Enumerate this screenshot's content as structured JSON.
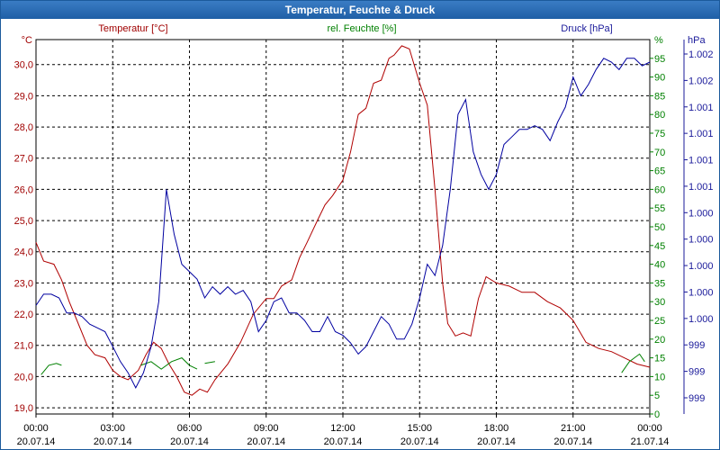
{
  "window": {
    "title": "Temperatur, Feuchte & Druck"
  },
  "chart_data": {
    "type": "line",
    "title": "Temperatur, Feuchte & Druck",
    "colors": {
      "temperature": "#b00000",
      "humidity": "#008000",
      "pressure": "#0000a0",
      "grid": "#000000"
    },
    "axes": {
      "temperature": {
        "title": "Temperatur [°C]",
        "unit": "°C",
        "ylim": [
          18.8,
          30.8
        ],
        "ticks": [
          "30,0",
          "29,0",
          "28,0",
          "27,0",
          "26,0",
          "25,0",
          "24,0",
          "23,0",
          "22,0",
          "21,0",
          "20,0",
          "19,0"
        ]
      },
      "humidity": {
        "title": "rel. Feuchte [%]",
        "unit": "%",
        "ylim": [
          0,
          100
        ],
        "ticks": [
          "95",
          "90",
          "85",
          "80",
          "75",
          "70",
          "65",
          "60",
          "55",
          "50",
          "45",
          "40",
          "35",
          "30",
          "25",
          "20",
          "15",
          "10",
          "5",
          "0"
        ]
      },
      "pressure": {
        "title": "Druck [hPa]",
        "unit": "hPa",
        "ticks": [
          "1.002",
          "1.002",
          "1.001",
          "1.001",
          "1.001",
          "1.001",
          "1.000",
          "1.000",
          "1.000",
          "1.000",
          "1.000",
          "999",
          "999",
          "999"
        ]
      },
      "x": {
        "range_hours": [
          0,
          24
        ],
        "ticks": [
          {
            "time": "00:00",
            "date": "20.07.14"
          },
          {
            "time": "03:00",
            "date": "20.07.14"
          },
          {
            "time": "06:00",
            "date": "20.07.14"
          },
          {
            "time": "09:00",
            "date": "20.07.14"
          },
          {
            "time": "12:00",
            "date": "20.07.14"
          },
          {
            "time": "15:00",
            "date": "20.07.14"
          },
          {
            "time": "18:00",
            "date": "20.07.14"
          },
          {
            "time": "21:00",
            "date": "20.07.14"
          },
          {
            "time": "00:00",
            "date": "21.07.14"
          }
        ]
      }
    },
    "series": [
      {
        "name": "Temperatur",
        "axis": "temperature",
        "x_hours": [
          0,
          0.3,
          0.7,
          1,
          1.3,
          1.6,
          2,
          2.3,
          2.7,
          3,
          3.3,
          3.6,
          4,
          4.3,
          4.6,
          4.9,
          5.2,
          5.5,
          5.8,
          6.1,
          6.4,
          6.7,
          7,
          7.5,
          8,
          8.5,
          9,
          9.3,
          9.6,
          10,
          10.3,
          10.6,
          11,
          11.3,
          11.6,
          12,
          12.3,
          12.6,
          12.9,
          13.2,
          13.5,
          13.8,
          14,
          14.3,
          14.6,
          15,
          15.3,
          15.6,
          15.9,
          16.1,
          16.4,
          16.7,
          17,
          17.3,
          17.6,
          18,
          18.5,
          19,
          19.5,
          20,
          20.5,
          21,
          21.5,
          22,
          22.5,
          23,
          23.5,
          24
        ],
        "y": [
          24.3,
          23.7,
          23.6,
          23.1,
          22.4,
          21.8,
          21.0,
          20.7,
          20.6,
          20.2,
          20.0,
          19.9,
          20.2,
          20.7,
          21.1,
          20.9,
          20.4,
          20.0,
          19.5,
          19.4,
          19.6,
          19.5,
          19.9,
          20.4,
          21.1,
          22.0,
          22.5,
          22.5,
          22.9,
          23.1,
          23.8,
          24.3,
          25.0,
          25.5,
          25.8,
          26.3,
          27.2,
          28.4,
          28.6,
          29.4,
          29.5,
          30.2,
          30.3,
          30.6,
          30.5,
          29.4,
          28.7,
          26.0,
          23.0,
          21.7,
          21.3,
          21.4,
          21.3,
          22.5,
          23.2,
          23.0,
          22.9,
          22.7,
          22.7,
          22.4,
          22.2,
          21.8,
          21.1,
          20.9,
          20.8,
          20.6,
          20.4,
          20.3
        ]
      },
      {
        "name": "rel. Feuchte",
        "axis": "humidity",
        "x_hours": [
          0.2,
          0.5,
          0.8,
          1.0
        ],
        "y": [
          10.5,
          13,
          13.5,
          13
        ]
      },
      {
        "name": "rel. Feuchte",
        "axis": "humidity",
        "x_hours": [
          4.1,
          4.5,
          4.9,
          5.3,
          5.7,
          6.0,
          6.3
        ],
        "y": [
          13,
          14,
          12,
          14,
          15,
          13,
          12
        ]
      },
      {
        "name": "rel. Feuchte",
        "axis": "humidity",
        "x_hours": [
          6.6,
          7.0
        ],
        "y": [
          13.5,
          14
        ]
      },
      {
        "name": "rel. Feuchte",
        "axis": "humidity",
        "x_hours": [
          22.9,
          23.2,
          23.4,
          23.6,
          23.8
        ],
        "y": [
          11,
          14,
          15,
          16,
          14
        ]
      },
      {
        "name": "Druck",
        "axis": "humidity",
        "x_hours": [
          0,
          0.3,
          0.6,
          0.9,
          1.2,
          1.5,
          1.8,
          2.1,
          2.4,
          2.7,
          3.0,
          3.3,
          3.6,
          3.9,
          4.2,
          4.5,
          4.8,
          5.1,
          5.4,
          5.7,
          6.0,
          6.3,
          6.6,
          6.9,
          7.2,
          7.5,
          7.8,
          8.1,
          8.4,
          8.7,
          9.0,
          9.3,
          9.6,
          9.9,
          10.2,
          10.5,
          10.8,
          11.1,
          11.4,
          11.7,
          12.0,
          12.3,
          12.6,
          12.9,
          13.2,
          13.5,
          13.8,
          14.1,
          14.4,
          14.7,
          15.0,
          15.3,
          15.6,
          15.9,
          16.2,
          16.5,
          16.8,
          17.1,
          17.4,
          17.7,
          18.0,
          18.3,
          18.6,
          18.9,
          19.2,
          19.5,
          19.8,
          20.1,
          20.4,
          20.7,
          21.0,
          21.3,
          21.6,
          21.9,
          22.2,
          22.5,
          22.8,
          23.1,
          23.4,
          23.7,
          24.0
        ],
        "y": [
          29,
          32,
          32,
          31,
          27,
          27,
          26,
          24,
          23,
          22,
          18,
          14,
          11,
          7,
          11,
          18,
          30,
          60,
          48,
          40,
          38,
          36,
          31,
          34,
          32,
          34,
          32,
          33,
          30,
          22,
          25,
          30,
          31,
          27,
          27,
          25,
          22,
          22,
          26,
          22,
          21,
          19,
          16,
          18,
          22,
          26,
          24,
          20,
          20,
          24,
          31,
          40,
          37,
          45,
          60,
          80,
          84,
          70,
          64,
          60,
          64,
          72,
          74,
          76,
          76,
          77,
          76,
          73,
          78,
          82,
          90,
          85,
          88,
          92,
          95,
          94,
          92,
          95,
          95,
          93,
          94
        ]
      }
    ]
  }
}
